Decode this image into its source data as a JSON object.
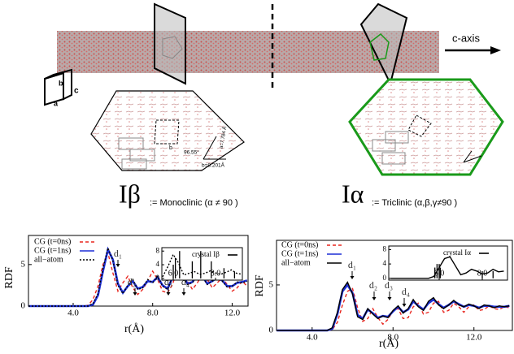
{
  "figure": {
    "axis_label": "c-axis",
    "cell": [
      "b",
      "a",
      "c"
    ],
    "beta": {
      "symbol": "Iβ",
      "desc": ":= Monoclinic (α ≠ 90 )",
      "params": [
        "96.55°",
        "a=7.784 Å",
        "b=8.201Å",
        "b"
      ]
    },
    "alpha": {
      "symbol": "Iα",
      "desc": ":= Triclinic (α,β,γ≠90 )"
    }
  },
  "chart_data": [
    {
      "type": "line",
      "x_label": "r(Å)",
      "y_label": "RDF",
      "xlim": [
        1.75,
        12.8
      ],
      "ylim": [
        0,
        8.5
      ],
      "xticks": [
        {
          "value": 4,
          "label": "4.0"
        },
        {
          "value": 8,
          "label": "8.0"
        },
        {
          "value": 12,
          "label": "12.0"
        }
      ],
      "yticks": [
        0,
        5
      ],
      "annotations": [
        "d₁",
        "d₂",
        "d₃",
        "d₄"
      ],
      "x": [
        1.75,
        2,
        2.25,
        2.5,
        2.75,
        3,
        3.25,
        3.5,
        3.75,
        4,
        4.25,
        4.5,
        4.75,
        5,
        5.25,
        5.5,
        5.75,
        6,
        6.25,
        6.5,
        6.75,
        7,
        7.25,
        7.5,
        7.75,
        8,
        8.25,
        8.5,
        8.75,
        9,
        9.25,
        9.5,
        9.75,
        10,
        10.25,
        10.5,
        10.75,
        11,
        11.25,
        11.5,
        11.75,
        12,
        12.25,
        12.5,
        12.75
      ],
      "series": [
        {
          "name": "CG (t=0ns)",
          "color": "#e8261f",
          "style": "dashed",
          "values": [
            0,
            0,
            0,
            0,
            0,
            0,
            0,
            0,
            0,
            0,
            0,
            0,
            0.1,
            0.8,
            2.4,
            5.0,
            6.4,
            4.0,
            1.8,
            2.8,
            3.6,
            2.2,
            1.4,
            2.0,
            3.0,
            4.2,
            3.2,
            1.8,
            1.6,
            2.6,
            4.4,
            4.6,
            3.0,
            2.0,
            2.8,
            3.8,
            3.2,
            2.2,
            2.8,
            3.4,
            2.6,
            1.8,
            2.2,
            3.0,
            2.4
          ]
        },
        {
          "name": "CG (t=1ns)",
          "color": "#1d2fd6",
          "style": "solid",
          "values": [
            0,
            0,
            0,
            0,
            0,
            0,
            0,
            0,
            0,
            0,
            0,
            0,
            0,
            0.2,
            1.3,
            4.2,
            6.8,
            5.6,
            2.7,
            1.6,
            2.4,
            3.0,
            2.1,
            2.3,
            3.0,
            2.9,
            3.5,
            2.5,
            2.1,
            3.4,
            4.3,
            3.9,
            2.7,
            2.9,
            3.7,
            3.6,
            2.7,
            3.0,
            3.4,
            3.1,
            2.4,
            2.4,
            2.8,
            2.9,
            3.1
          ]
        },
        {
          "name": "all−atom",
          "color": "#000000",
          "style": "dotted",
          "values": [
            0,
            0,
            0,
            0,
            0,
            0,
            0,
            0,
            0,
            0,
            0,
            0,
            0,
            0.3,
            1.5,
            4.5,
            7.0,
            5.5,
            2.5,
            1.5,
            2.5,
            3.2,
            2.0,
            2.2,
            3.2,
            2.8,
            3.6,
            2.4,
            2.0,
            3.5,
            4.4,
            3.8,
            2.6,
            2.8,
            3.8,
            3.5,
            2.6,
            3.0,
            3.5,
            3.0,
            2.3,
            2.4,
            2.9,
            2.8,
            3.0
          ]
        }
      ],
      "inset": {
        "xlim": [
          5.46,
          9.27
        ],
        "ylim": [
          -0.5,
          9
        ],
        "xticks": [
          {
            "value": 6,
            "label": "6.0"
          },
          {
            "value": 8,
            "label": "8.0"
          }
        ],
        "yticks": [
          0,
          4,
          8
        ],
        "curve": {
          "color": "#000000",
          "style": "dotted",
          "x": [
            5.5,
            5.75,
            6,
            6.25,
            6.5,
            6.75,
            7,
            7.25,
            7.5,
            7.75,
            8,
            8.25,
            8.5,
            8.75,
            9,
            9.25
          ],
          "values": [
            0.5,
            3.5,
            7.0,
            4.5,
            1.0,
            1.5,
            2.0,
            1.2,
            1.5,
            2.2,
            1.6,
            1.2,
            1.8,
            2.5,
            1.5,
            1.2
          ]
        },
        "sticks": {
          "name": "crystal Iβ",
          "color": "#000000",
          "x": [
            6.0,
            6.1,
            6.3,
            6.9,
            7.3,
            7.8,
            8.4,
            8.9
          ],
          "values": [
            4,
            6,
            8,
            5,
            8,
            5,
            3,
            2
          ]
        }
      }
    },
    {
      "type": "line",
      "x_label": "r(Å)",
      "y_label": "RDF",
      "xlim": [
        2.24,
        13.9
      ],
      "ylim": [
        0,
        9.9
      ],
      "xticks": [
        {
          "value": 4,
          "label": "4.0"
        },
        {
          "value": 8,
          "label": "8.0"
        },
        {
          "value": 12,
          "label": "12.0"
        }
      ],
      "yticks": [
        0,
        5,
        10
      ],
      "annotations": [
        "d₁",
        "d₂",
        "d₃",
        "d₄"
      ],
      "x": [
        2.25,
        2.5,
        2.75,
        3,
        3.25,
        3.5,
        3.75,
        4,
        4.25,
        4.5,
        4.75,
        5,
        5.25,
        5.5,
        5.75,
        6,
        6.25,
        6.5,
        6.75,
        7,
        7.25,
        7.5,
        7.75,
        8,
        8.25,
        8.5,
        8.75,
        9,
        9.25,
        9.5,
        9.75,
        10,
        10.25,
        10.5,
        10.75,
        11,
        11.25,
        11.5,
        11.75,
        12,
        12.25,
        12.5,
        12.75,
        13,
        13.25,
        13.5,
        13.75
      ],
      "series": [
        {
          "name": "CG (t=0ns)",
          "color": "#e8261f",
          "style": "dashed",
          "values": [
            0,
            0,
            0,
            0,
            0,
            0,
            0,
            0,
            0,
            0,
            0,
            0.1,
            0.9,
            2.8,
            4.3,
            4.6,
            2.5,
            1.0,
            1.3,
            2.4,
            1.4,
            0.7,
            1.2,
            2.2,
            2.4,
            1.3,
            1.4,
            2.6,
            3.0,
            1.8,
            2.0,
            3.0,
            3.2,
            2.0,
            2.2,
            3.0,
            2.6,
            2.0,
            2.6,
            2.8,
            2.2,
            2.3,
            2.7,
            2.4,
            2.3,
            2.6,
            2.5
          ]
        },
        {
          "name": "CG (t=1ns)",
          "color": "#1d2fd6",
          "style": "solid",
          "values": [
            0,
            0,
            0,
            0,
            0,
            0,
            0,
            0,
            0,
            0,
            0,
            0.2,
            1.8,
            4.3,
            5.0,
            4.1,
            1.7,
            1.3,
            2.3,
            1.9,
            1.4,
            1.6,
            1.5,
            2.1,
            2.6,
            2.0,
            2.3,
            3.2,
            2.7,
            2.3,
            3.0,
            3.4,
            2.9,
            2.5,
            2.8,
            3.2,
            2.9,
            2.6,
            2.8,
            2.7,
            2.5,
            2.7,
            2.7,
            2.6,
            2.6,
            2.6,
            2.7
          ]
        },
        {
          "name": "all−atom",
          "color": "#000000",
          "style": "solid",
          "values": [
            0,
            0,
            0,
            0,
            0,
            0,
            0,
            0,
            0,
            0,
            0,
            0.3,
            2.0,
            4.5,
            5.3,
            4.0,
            1.5,
            1.2,
            2.4,
            1.8,
            1.3,
            1.6,
            1.4,
            2.2,
            2.7,
            1.9,
            2.4,
            3.4,
            2.6,
            2.2,
            3.2,
            3.6,
            2.8,
            2.4,
            2.8,
            3.3,
            2.8,
            2.6,
            2.9,
            2.7,
            2.4,
            2.8,
            2.7,
            2.5,
            2.7,
            2.6,
            2.7
          ]
        }
      ],
      "inset": {
        "xlim": [
          3.66,
          9.17
        ],
        "ylim": [
          -0.5,
          9
        ],
        "xticks": [
          {
            "value": 6,
            "label": "6.0"
          },
          {
            "value": 8,
            "label": "8.0"
          }
        ],
        "yticks": [
          0,
          4,
          8
        ],
        "curve": {
          "color": "#000000",
          "style": "solid",
          "x": [
            3.75,
            4,
            4.25,
            4.5,
            4.75,
            5,
            5.25,
            5.5,
            5.75,
            6,
            6.25,
            6.5,
            6.75,
            7,
            7.25,
            7.5,
            7.75,
            8,
            8.25,
            8.5,
            8.75,
            9
          ],
          "values": [
            0,
            0,
            0,
            0,
            0,
            0,
            0,
            0,
            0.5,
            3,
            5.5,
            6,
            3.5,
            1,
            1.5,
            2.5,
            2,
            1.2,
            1.5,
            2.5,
            1.8,
            2.0
          ]
        },
        "sticks": {
          "name": "crystal Iα",
          "color": "#000000",
          "x": [
            5.8,
            5.9,
            6.0,
            6.05,
            8.0,
            8.5
          ],
          "values": [
            3,
            4,
            4,
            3,
            2,
            2
          ]
        }
      }
    }
  ]
}
